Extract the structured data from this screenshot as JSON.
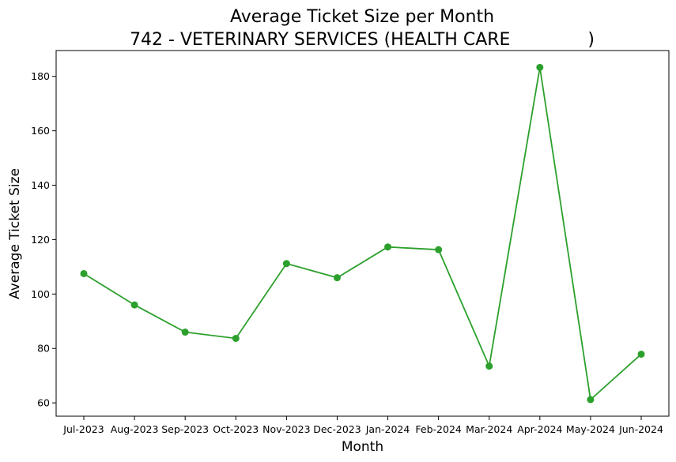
{
  "chart_data": {
    "type": "line",
    "title": "Average Ticket Size per Month",
    "subtitle": "742 - VETERINARY SERVICES (HEALTH CARE              )",
    "xlabel": "Month",
    "ylabel": "Average Ticket Size",
    "categories": [
      "Jul-2023",
      "Aug-2023",
      "Sep-2023",
      "Oct-2023",
      "Nov-2023",
      "Dec-2023",
      "Jan-2024",
      "Feb-2024",
      "Mar-2024",
      "Apr-2024",
      "May-2024",
      "Jun-2024"
    ],
    "series": [
      {
        "values": [
          107.5,
          96.0,
          86.0,
          83.7,
          111.2,
          106.0,
          117.3,
          116.3,
          73.5,
          183.3,
          61.2,
          77.9
        ],
        "color": "#2ca02c"
      }
    ],
    "yticks": [
      60,
      80,
      100,
      120,
      140,
      160,
      180
    ],
    "ylim": [
      55.1,
      189.5
    ],
    "grid": false,
    "legend": "none"
  }
}
